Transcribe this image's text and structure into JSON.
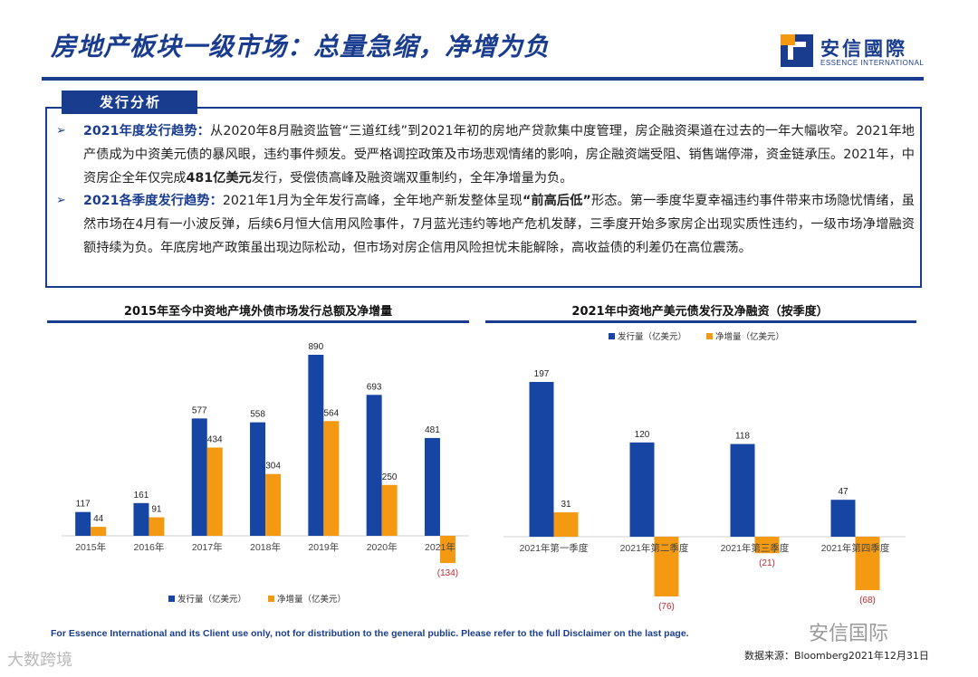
{
  "header": {
    "title": "房地产板块一级市场：总量急缩，净增为负",
    "logo_cn": "安信國際",
    "logo_en": "ESSENCE INTERNATIONAL"
  },
  "analysis": {
    "tab_label": "发行分析",
    "p1_head": "2021年度发行趋势：",
    "p1_text_a": "从2020年8月融资监管“三道红线”到2021年初的房地产贷款集中度管理，房企融资渠道在过去的一年大幅收窄。2021年地产债成为中资美元债的暴风眼，违约事件频发。受严格调控政策及市场悲观情绪的影响，房企融资端受阻、销售端停滞，资金链承压。2021年，中资房企全年仅完成",
    "p1_bold": "481亿美元",
    "p1_text_b": "发行，受偿债高峰及融资端双重制约，全年净增量为负。",
    "p2_head": "2021各季度发行趋势：",
    "p2_text_a": "2021年1月为全年发行高峰，全年地产新发整体呈现",
    "p2_bold": "“前高后低”",
    "p2_text_b": "形态。第一季度华夏幸福违约事件带来市场隐忧情绪，虽然市场在4月有一小波反弹，后续6月恒大信用风险事件，7月蓝光违约等地产危机发酵，三季度开始多家房企出现实质性违约，一级市场净增融资额持续为负。年底房地产政策虽出现边际松动，但市场对房企信用风险担忧未能解除，高收益债的利差仍在高位震荡。"
  },
  "chart_data": [
    {
      "type": "bar",
      "title": "2015年至今中资地产境外债市场发行总额及净增量",
      "categories": [
        "2015年",
        "2016年",
        "2017年",
        "2018年",
        "2019年",
        "2020年",
        "2021年"
      ],
      "series": [
        {
          "name": "发行量（亿美元）",
          "values": [
            117,
            161,
            577,
            558,
            890,
            693,
            481
          ],
          "color": "#1745a3"
        },
        {
          "name": "净增量（亿美元）",
          "values": [
            44,
            91,
            434,
            304,
            564,
            250,
            -134
          ],
          "color": "#f39a12"
        }
      ],
      "value_labels": [
        [
          "117",
          "161",
          "577",
          "558",
          "890",
          "693",
          "481"
        ],
        [
          "44",
          "91",
          "434",
          "304",
          "564",
          "250",
          "(134)"
        ]
      ],
      "ylim": [
        -134,
        890
      ],
      "legend_position": "bottom"
    },
    {
      "type": "bar",
      "title": "2021年中资地产美元债发行及净融资（按季度）",
      "categories": [
        "2021年第一季度",
        "2021年第二季度",
        "2021年第三季度",
        "2021年第四季度"
      ],
      "series": [
        {
          "name": "发行量（亿美元）",
          "values": [
            197,
            120,
            118,
            47
          ],
          "color": "#1745a3"
        },
        {
          "name": "净增量（亿美元）",
          "values": [
            31,
            -76,
            -21,
            -68
          ],
          "color": "#f39a12"
        }
      ],
      "value_labels": [
        [
          "197",
          "120",
          "118",
          "47"
        ],
        [
          "31",
          "(76)",
          "(21)",
          "(68)"
        ]
      ],
      "ylim": [
        -76,
        197
      ],
      "legend_position": "top"
    }
  ],
  "footer": {
    "disclaimer": "For Essence International and its Client use only, not for distribution to the general public. Please refer to the full Disclaimer on the last page.",
    "source": "数据来源：Bloomberg2021年12月31日",
    "watermark_right": "安信国际",
    "watermark_left": "大数跨境"
  },
  "colors": {
    "brand": "#1a3c8f",
    "issue": "#1745a3",
    "net": "#f39a12",
    "negative_label": "#c0282d"
  }
}
